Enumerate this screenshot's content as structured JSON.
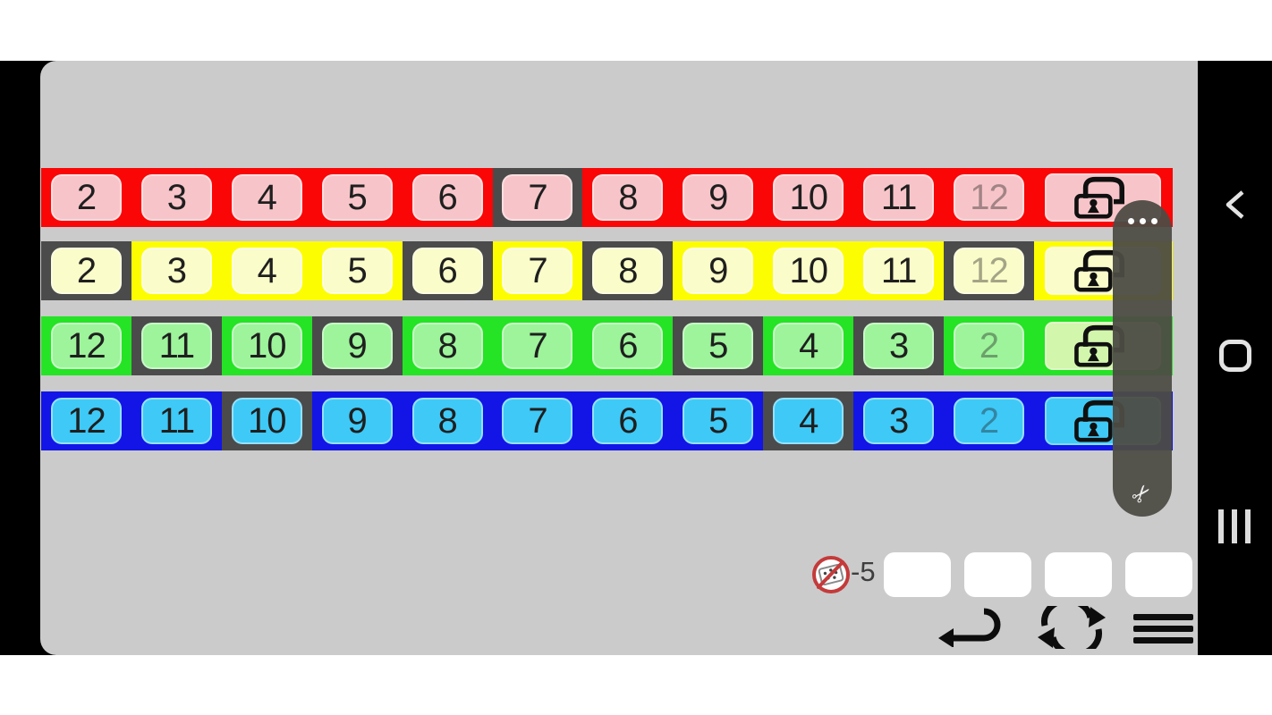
{
  "window": {
    "bg": "#ffffff",
    "screen_bg": "#000000",
    "app_bg": "#cbcbcb",
    "dark_cell": "#4b4b4b"
  },
  "game": {
    "rows": [
      {
        "id": "red",
        "strip_color": "#fa0606",
        "tile_color": "#f7c5c9",
        "lock_tile_color": "#f7c5c9",
        "lock_icon": "open-padlock",
        "cells": [
          {
            "label": "2",
            "state": "normal"
          },
          {
            "label": "3",
            "state": "normal"
          },
          {
            "label": "4",
            "state": "normal"
          },
          {
            "label": "5",
            "state": "normal"
          },
          {
            "label": "6",
            "state": "normal"
          },
          {
            "label": "7",
            "state": "selected"
          },
          {
            "label": "8",
            "state": "normal"
          },
          {
            "label": "9",
            "state": "normal"
          },
          {
            "label": "10",
            "state": "normal"
          },
          {
            "label": "11",
            "state": "normal"
          },
          {
            "label": "12",
            "state": "dimmed"
          }
        ]
      },
      {
        "id": "yellow",
        "strip_color": "#fdfd02",
        "tile_color": "#fafcc9",
        "lock_tile_color": "#fafcc9",
        "lock_icon": "open-padlock",
        "cells": [
          {
            "label": "2",
            "state": "selected"
          },
          {
            "label": "3",
            "state": "normal"
          },
          {
            "label": "4",
            "state": "normal"
          },
          {
            "label": "5",
            "state": "normal"
          },
          {
            "label": "6",
            "state": "selected"
          },
          {
            "label": "7",
            "state": "normal"
          },
          {
            "label": "8",
            "state": "selected"
          },
          {
            "label": "9",
            "state": "normal"
          },
          {
            "label": "10",
            "state": "normal"
          },
          {
            "label": "11",
            "state": "normal"
          },
          {
            "label": "12",
            "state": "selected-dimmed"
          }
        ]
      },
      {
        "id": "green",
        "strip_color": "#25e325",
        "tile_color": "#9df49b",
        "lock_tile_color": "#d2f6ac",
        "lock_icon": "open-padlock",
        "cells": [
          {
            "label": "12",
            "state": "normal"
          },
          {
            "label": "11",
            "state": "selected"
          },
          {
            "label": "10",
            "state": "normal"
          },
          {
            "label": "9",
            "state": "selected"
          },
          {
            "label": "8",
            "state": "normal"
          },
          {
            "label": "7",
            "state": "normal"
          },
          {
            "label": "6",
            "state": "normal"
          },
          {
            "label": "5",
            "state": "selected"
          },
          {
            "label": "4",
            "state": "normal"
          },
          {
            "label": "3",
            "state": "selected"
          },
          {
            "label": "2",
            "state": "dimmed"
          }
        ]
      },
      {
        "id": "blue",
        "strip_color": "#1215e6",
        "tile_color": "#3fc9f7",
        "lock_tile_color": "#3fc9f7",
        "lock_icon": "open-padlock",
        "cells": [
          {
            "label": "12",
            "state": "normal"
          },
          {
            "label": "11",
            "state": "normal"
          },
          {
            "label": "10",
            "state": "selected"
          },
          {
            "label": "9",
            "state": "normal"
          },
          {
            "label": "8",
            "state": "normal"
          },
          {
            "label": "7",
            "state": "normal"
          },
          {
            "label": "6",
            "state": "normal"
          },
          {
            "label": "5",
            "state": "normal"
          },
          {
            "label": "4",
            "state": "selected"
          },
          {
            "label": "3",
            "state": "normal"
          },
          {
            "label": "2",
            "state": "dimmed"
          }
        ]
      }
    ],
    "tray": {
      "penalty_label": "-5",
      "penalty_icon": "no-dice",
      "slots": [
        "",
        "",
        "",
        ""
      ]
    },
    "controls": {
      "undo_icon": "undo-arrow",
      "refresh_icon": "refresh-arrows",
      "menu_icon": "hamburger-menu"
    }
  },
  "edge_panel": {
    "handle_color": "rgba(77,76,69,0.95)",
    "more_icon": "ellipsis-dots",
    "scissors_icon": "scissors",
    "scissors_glyph": "✂"
  },
  "android_nav": {
    "back_icon": "chevron-back",
    "home_icon": "home-square",
    "recents_icon": "recents-bars"
  }
}
